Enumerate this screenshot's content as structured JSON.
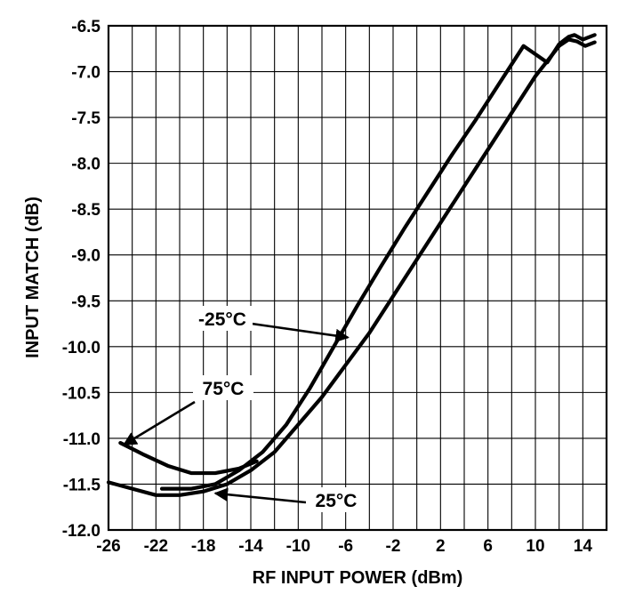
{
  "chart_data": {
    "type": "line",
    "xlabel": "RF INPUT POWER (dBm)",
    "ylabel": "INPUT MATCH (dB)",
    "xlim": [
      -26,
      16
    ],
    "ylim": [
      -12.0,
      -6.5
    ],
    "x_ticks": [
      -26,
      -22,
      -18,
      -14,
      -10,
      -6,
      -2,
      2,
      6,
      10,
      14
    ],
    "x_tick_labels": [
      "-26",
      "-22",
      "-18",
      "-14",
      "-10",
      "-6",
      "-2",
      "2",
      "6",
      "10",
      "14"
    ],
    "y_ticks": [
      -6.5,
      -7.0,
      -7.5,
      -8.0,
      -8.5,
      -9.0,
      -9.5,
      -10.0,
      -10.5,
      -11.0,
      -11.5,
      -12.0
    ],
    "y_tick_labels": [
      "-6.5",
      "-7.0",
      "-7.5",
      "-8.0",
      "-8.5",
      "-9.0",
      "-9.5",
      "-10.0",
      "-10.5",
      "-11.0",
      "-11.5",
      "-12.0"
    ],
    "x_grid_step": 2,
    "y_grid_step": 0.5,
    "grid": true,
    "series": [
      {
        "name": "-25°C",
        "x": [
          -21.5,
          -19,
          -17,
          -15,
          -13,
          -11,
          -9,
          -7,
          -5,
          -3,
          -1,
          1,
          3,
          5,
          7,
          9,
          11,
          12,
          12.8,
          13.3,
          14,
          15
        ],
        "y": [
          -11.55,
          -11.55,
          -11.5,
          -11.35,
          -11.15,
          -10.85,
          -10.45,
          -10.0,
          -9.55,
          -9.12,
          -8.7,
          -8.3,
          -7.9,
          -7.52,
          -7.12,
          -6.72,
          -6.9,
          -6.7,
          -6.62,
          -6.6,
          -6.65,
          -6.6
        ]
      },
      {
        "name": "25°C",
        "x": [
          -26,
          -24,
          -22,
          -20,
          -18,
          -16,
          -14,
          -12,
          -10,
          -8,
          -6,
          -4,
          -2,
          0,
          2,
          4,
          6,
          8,
          10,
          12,
          12.8,
          13.5,
          14.2,
          15
        ],
        "y": [
          -11.48,
          -11.55,
          -11.62,
          -11.62,
          -11.58,
          -11.5,
          -11.35,
          -11.15,
          -10.85,
          -10.55,
          -10.2,
          -9.85,
          -9.45,
          -9.05,
          -8.65,
          -8.25,
          -7.85,
          -7.45,
          -7.05,
          -6.72,
          -6.65,
          -6.67,
          -6.72,
          -6.68
        ]
      },
      {
        "name": "75°C",
        "x": [
          -25,
          -23,
          -21,
          -19,
          -17,
          -15,
          -13.5
        ],
        "y": [
          -11.05,
          -11.18,
          -11.3,
          -11.38,
          -11.38,
          -11.33,
          -11.25
        ]
      }
    ],
    "annotations": [
      {
        "text": "-25°C",
        "arrow_to": [
          -5.8,
          -9.9
        ]
      },
      {
        "text": "75°C",
        "arrow_to": [
          -24.7,
          -11.07
        ]
      },
      {
        "text": "25°C",
        "arrow_to": [
          -17,
          -11.6
        ]
      }
    ],
    "colors": {
      "lines": "#000000",
      "grid": "#000000",
      "background": "#ffffff"
    }
  }
}
